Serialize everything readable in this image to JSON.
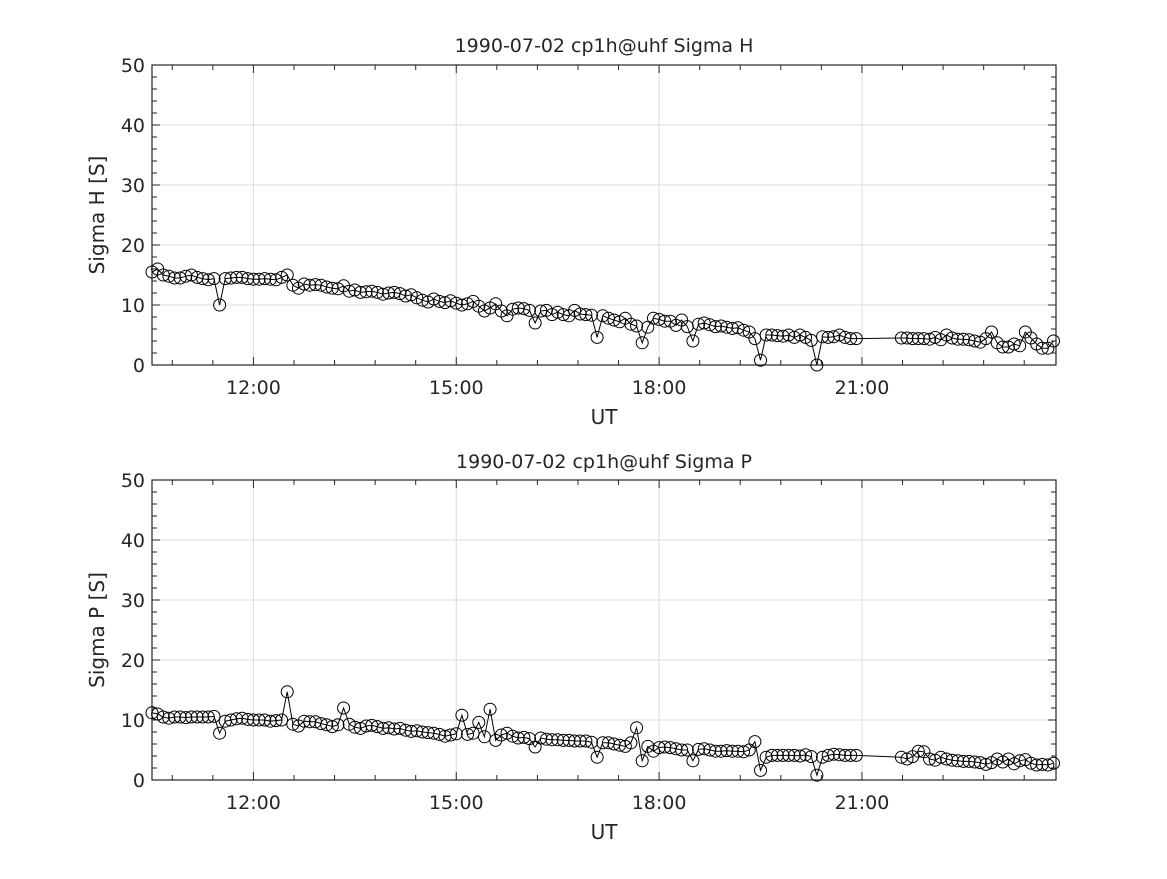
{
  "chart_data": [
    {
      "type": "line",
      "title": "1990-07-02  cp1h@uhf Sigma H",
      "xlabel": "UT",
      "ylabel": "Sigma H [S]",
      "xlim_hours": [
        10.5,
        23.87
      ],
      "ylim": [
        0,
        50
      ],
      "xticks": [
        "12:00",
        "15:00",
        "18:00",
        "21:00"
      ],
      "xtick_hours": [
        12,
        15,
        18,
        21
      ],
      "yticks": [
        "0",
        "10",
        "20",
        "30",
        "40",
        "50"
      ],
      "grid": true,
      "marker": "open-circle",
      "series": [
        {
          "name": "Sigma H",
          "segments": [
            {
              "start": "10:30",
              "step_minutes": 5,
              "values": [
                15.5,
                16,
                15,
                14.8,
                14.5,
                14.5,
                14.8,
                15,
                14.6,
                14.4,
                14.2,
                14.4,
                10,
                14.4,
                14.5,
                14.6,
                14.6,
                14.4,
                14.3,
                14.3,
                14.4,
                14.3,
                14.2,
                14.6,
                15,
                13.3,
                12.8,
                13.5,
                13.3,
                13.4,
                13.3,
                13,
                12.8,
                12.7,
                13.2,
                12.3,
                12.5,
                12.1,
                12.2,
                12.3,
                12.1,
                11.8,
                12,
                12.1,
                11.9,
                11.5,
                11.7,
                11.2,
                10.8,
                10.5,
                11,
                10.6,
                10.4,
                10.7,
                10.3,
                10,
                10.2,
                10.6,
                9.8,
                9,
                9.5,
                10.2,
                9,
                8.2,
                9.3,
                9.5,
                9.4,
                9.1,
                7,
                9,
                9.1,
                8.4,
                8.8,
                8.4,
                8.2,
                9.1,
                8.5,
                8.4,
                8.3,
                4.6,
                8.2,
                7.8,
                7.5,
                7.2,
                7.8,
                6.8,
                6.5,
                3.7,
                6.3,
                7.8,
                7.6,
                7.3,
                7.3,
                6.6,
                7.5,
                6.4,
                4,
                6.8,
                7,
                6.7,
                6.4,
                6.5,
                6.3,
                6.1,
                6.2,
                5.8,
                5.5,
                4.4,
                0.8,
                5,
                5,
                4.9,
                4.8,
                5,
                4.6,
                5,
                4.6,
                4.1,
                0,
                4.7,
                4.6,
                4.7,
                5,
                4.6,
                4.4,
                4.4
              ]
            },
            {
              "start": "21:35",
              "step_minutes": 5,
              "values": [
                4.5,
                4.5,
                4.4,
                4.4,
                4.4,
                4.3,
                4.6,
                4.2,
                5,
                4.5,
                4.3,
                4.3,
                4.2,
                4,
                3.8,
                4.4,
                5.5,
                3.7,
                3,
                3,
                3.5,
                3.2,
                5.5,
                4.5,
                3.5,
                2.8,
                2.8,
                4
              ]
            }
          ]
        }
      ]
    },
    {
      "type": "line",
      "title": "1990-07-02  cp1h@uhf Sigma P",
      "xlabel": "UT",
      "ylabel": "Sigma P [S]",
      "xlim_hours": [
        10.5,
        23.87
      ],
      "ylim": [
        0,
        50
      ],
      "xticks": [
        "12:00",
        "15:00",
        "18:00",
        "21:00"
      ],
      "xtick_hours": [
        12,
        15,
        18,
        21
      ],
      "yticks": [
        "0",
        "10",
        "20",
        "30",
        "40",
        "50"
      ],
      "grid": true,
      "marker": "open-circle",
      "series": [
        {
          "name": "Sigma P",
          "segments": [
            {
              "start": "10:30",
              "step_minutes": 5,
              "values": [
                11.2,
                11,
                10.5,
                10.3,
                10.5,
                10.5,
                10.4,
                10.5,
                10.5,
                10.5,
                10.5,
                10.6,
                7.8,
                9.8,
                10,
                10.2,
                10.3,
                10.1,
                10,
                10,
                10,
                9.8,
                9.9,
                10,
                14.7,
                9.3,
                9,
                9.8,
                9.7,
                9.7,
                9.4,
                9.2,
                8.9,
                9.2,
                12,
                9.3,
                8.8,
                8.6,
                9,
                9.1,
                8.9,
                8.6,
                8.7,
                8.5,
                8.6,
                8.3,
                8.1,
                8.2,
                8,
                7.9,
                7.8,
                7.6,
                7.3,
                7.5,
                7.7,
                10.8,
                7.6,
                7.8,
                9.6,
                7.2,
                11.8,
                6.6,
                7.5,
                7.8,
                7.3,
                7,
                7.1,
                6.9,
                5.5,
                7,
                6.8,
                6.7,
                6.7,
                6.6,
                6.6,
                6.5,
                6.5,
                6.5,
                6.3,
                3.8,
                6.2,
                6.2,
                6,
                5.8,
                5.6,
                6.2,
                8.7,
                3.2,
                5.6,
                4.8,
                5.4,
                5.5,
                5.4,
                5.2,
                5,
                5,
                3.2,
                5.1,
                5.2,
                5,
                4.8,
                4.8,
                4.9,
                4.8,
                4.8,
                4.7,
                5,
                6.4,
                1.6,
                3.8,
                4.1,
                4.1,
                4.1,
                4.1,
                4.1,
                4,
                4.2,
                3.9,
                0.8,
                3.8,
                4.1,
                4.3,
                4.2,
                4.1,
                4.1,
                4.1
              ]
            },
            {
              "start": "21:35",
              "step_minutes": 5,
              "values": [
                3.8,
                3.5,
                3.9,
                4.8,
                4.7,
                3.5,
                3.3,
                3.8,
                3.5,
                3.3,
                3.2,
                3.1,
                3.1,
                3,
                2.9,
                2.6,
                2.9,
                3.5,
                3,
                3.5,
                2.7,
                3.2,
                3.4,
                2.8,
                2.5,
                2.6,
                2.5,
                2.8
              ]
            }
          ]
        }
      ]
    }
  ]
}
